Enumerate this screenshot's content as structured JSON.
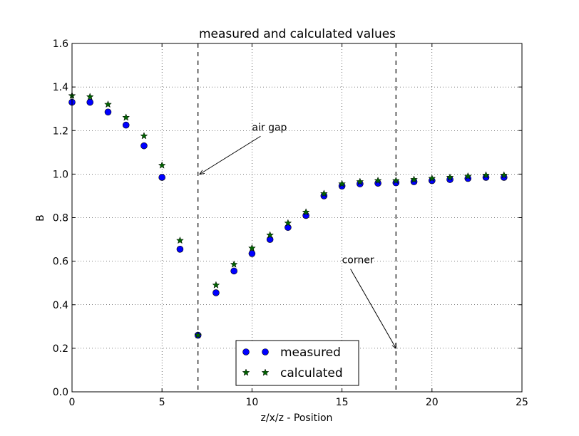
{
  "chart_data": {
    "type": "scatter",
    "title": "measured and calculated values",
    "xlabel": "z/x/z - Position",
    "ylabel": "B",
    "xlim": [
      0,
      25
    ],
    "ylim": [
      0,
      1.6
    ],
    "xticks": [
      "0",
      "5",
      "10",
      "15",
      "20",
      "25"
    ],
    "yticks": [
      "0.0",
      "0.2",
      "0.4",
      "0.6",
      "0.8",
      "1.0",
      "1.2",
      "1.4",
      "1.6"
    ],
    "grid": true,
    "legend_position": "bottom-center",
    "x": [
      0,
      1,
      2,
      3,
      4,
      5,
      6,
      7,
      8,
      9,
      10,
      11,
      12,
      13,
      14,
      15,
      16,
      17,
      18,
      19,
      20,
      21,
      22,
      23,
      24
    ],
    "series": [
      {
        "name": "measured",
        "marker": "circle",
        "color": "#0000ff",
        "values": [
          1.33,
          1.33,
          1.285,
          1.225,
          1.13,
          0.985,
          0.655,
          0.26,
          0.455,
          0.555,
          0.635,
          0.7,
          0.755,
          0.81,
          0.9,
          0.945,
          0.955,
          0.958,
          0.96,
          0.965,
          0.97,
          0.975,
          0.98,
          0.985,
          0.985
        ]
      },
      {
        "name": "calculated",
        "marker": "star",
        "color": "#006400",
        "values": [
          1.36,
          1.355,
          1.32,
          1.26,
          1.175,
          1.04,
          0.695,
          0.26,
          0.49,
          0.585,
          0.66,
          0.72,
          0.775,
          0.825,
          0.91,
          0.955,
          0.965,
          0.97,
          0.97,
          0.975,
          0.98,
          0.985,
          0.99,
          0.995,
          0.995
        ]
      }
    ],
    "vlines": [
      7,
      18
    ],
    "annotations": [
      {
        "text": "air gap",
        "text_x": 10,
        "text_y": 1.2,
        "arrow_x": 7.1,
        "arrow_y": 1.0
      },
      {
        "text": "corner",
        "text_x": 15,
        "text_y": 0.59,
        "arrow_x": 18,
        "arrow_y": 0.2
      }
    ]
  }
}
